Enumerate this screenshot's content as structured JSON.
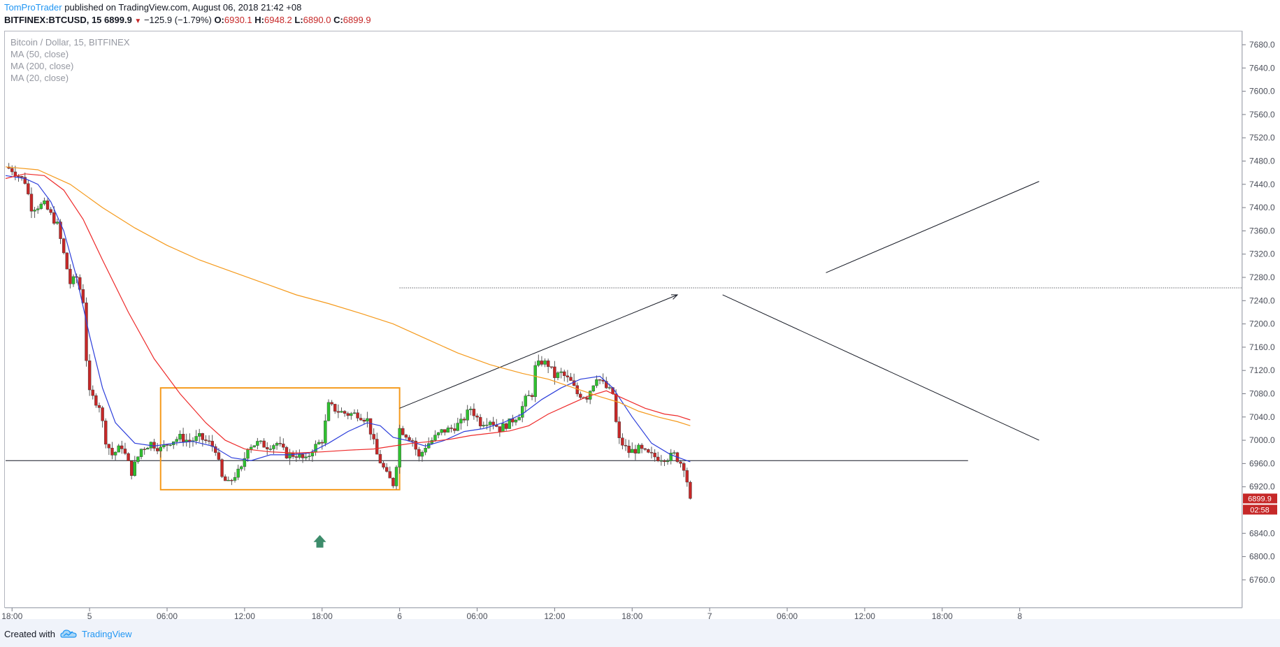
{
  "header": {
    "author": "TomProTrader",
    "published_text": "published on TradingView.com, August 06, 2018 21:42 +08",
    "symbol_line": "BITFINEX:BTCUSD, 15",
    "last_price": "6899.9",
    "change": "−125.9 (−1.79%)",
    "o_label": "O:",
    "o_value": "6930.1",
    "h_label": "H:",
    "h_value": "6948.2",
    "l_label": "L:",
    "l_value": "6890.0",
    "c_label": "C:",
    "c_value": "6899.9"
  },
  "legend": {
    "title": "Bitcoin / Dollar, 15, BITFINEX",
    "ma50": "MA (50, close)",
    "ma200": "MA (200, close)",
    "ma20": "MA (20, close)"
  },
  "footer": {
    "created_with": "Created with",
    "brand": "TradingView"
  },
  "colors": {
    "up": "#2fc12f",
    "down": "#c62828",
    "ma20": "#2c3edb",
    "ma50": "#ee2a2a",
    "ma200": "#f59a1c",
    "range_box": "#f59a1c",
    "price_tag": "#c62828",
    "signal_arrow": "#3d8c6b"
  },
  "chart_data": {
    "type": "candlestick",
    "title": "Bitcoin / Dollar, 15, BITFINEX",
    "ylim": [
      6730,
      7720
    ],
    "y_ticks": [
      7680,
      7640,
      7600,
      7560,
      7520,
      7480,
      7440,
      7400,
      7360,
      7320,
      7280,
      7240,
      7200,
      7160,
      7120,
      7080,
      7040,
      7000,
      6960,
      6920,
      6840,
      6800,
      6760
    ],
    "y_tick_labels": [
      "7680.0",
      "7640.0",
      "7600.0",
      "7560.0",
      "7520.0",
      "7480.0",
      "7440.0",
      "7400.0",
      "7360.0",
      "7320.0",
      "7280.0",
      "7240.0",
      "7200.0",
      "7160.0",
      "7120.0",
      "7080.0",
      "7040.0",
      "7000.0",
      "6960.0",
      "6920.0",
      "6840.0",
      "6800.0",
      "6760.0"
    ],
    "x_ticks": [
      {
        "label": "18:00",
        "t": 2
      },
      {
        "label": "5",
        "t": 26
      },
      {
        "label": "06:00",
        "t": 50
      },
      {
        "label": "12:00",
        "t": 74
      },
      {
        "label": "18:00",
        "t": 98
      },
      {
        "label": "6",
        "t": 122
      },
      {
        "label": "06:00",
        "t": 146
      },
      {
        "label": "12:00",
        "t": 170
      },
      {
        "label": "18:00",
        "t": 194
      },
      {
        "label": "7",
        "t": 218
      },
      {
        "label": "06:00",
        "t": 242
      },
      {
        "label": "12:00",
        "t": 266
      },
      {
        "label": "18:00",
        "t": 290
      },
      {
        "label": "8",
        "t": 314
      }
    ],
    "price_tag": "6899.9",
    "countdown_tag": "02:58",
    "candle_points": [
      [
        0,
        7470
      ],
      [
        2,
        7465
      ],
      [
        6,
        7445
      ],
      [
        8,
        7400
      ],
      [
        12,
        7405
      ],
      [
        16,
        7370
      ],
      [
        18,
        7320
      ],
      [
        20,
        7270
      ],
      [
        22,
        7280
      ],
      [
        24,
        7240
      ],
      [
        25,
        7140
      ],
      [
        26,
        7080
      ],
      [
        29,
        7060
      ],
      [
        31,
        7000
      ],
      [
        33,
        6975
      ],
      [
        36,
        6990
      ],
      [
        39,
        6945
      ],
      [
        42,
        6985
      ],
      [
        45,
        6995
      ],
      [
        48,
        6985
      ],
      [
        51,
        6998
      ],
      [
        54,
        7005
      ],
      [
        57,
        6998
      ],
      [
        60,
        7005
      ],
      [
        63,
        6995
      ],
      [
        65,
        6985
      ],
      [
        67,
        6935
      ],
      [
        69,
        6925
      ],
      [
        71,
        6940
      ],
      [
        73,
        6950
      ],
      [
        75,
        6990
      ],
      [
        78,
        6995
      ],
      [
        81,
        6990
      ],
      [
        84,
        6995
      ],
      [
        87,
        6975
      ],
      [
        90,
        6975
      ],
      [
        93,
        6965
      ],
      [
        95,
        6985
      ],
      [
        98,
        7000
      ],
      [
        100,
        7060
      ],
      [
        103,
        7050
      ],
      [
        106,
        7045
      ],
      [
        109,
        7045
      ],
      [
        112,
        7035
      ],
      [
        115,
        6975
      ],
      [
        118,
        6940
      ],
      [
        120,
        6925
      ],
      [
        121,
        6960
      ],
      [
        122,
        7020
      ],
      [
        124,
        7010
      ],
      [
        126,
        7000
      ],
      [
        128,
        6970
      ],
      [
        130,
        6990
      ],
      [
        132,
        7000
      ],
      [
        135,
        7015
      ],
      [
        138,
        7020
      ],
      [
        141,
        7030
      ],
      [
        144,
        7055
      ],
      [
        147,
        7030
      ],
      [
        150,
        7035
      ],
      [
        153,
        7020
      ],
      [
        156,
        7030
      ],
      [
        159,
        7045
      ],
      [
        161,
        7070
      ],
      [
        163,
        7080
      ],
      [
        164,
        7125
      ],
      [
        166,
        7135
      ],
      [
        168,
        7130
      ],
      [
        170,
        7110
      ],
      [
        172,
        7115
      ],
      [
        175,
        7100
      ],
      [
        177,
        7080
      ],
      [
        180,
        7075
      ],
      [
        183,
        7110
      ],
      [
        186,
        7090
      ],
      [
        188,
        7080
      ],
      [
        189,
        7030
      ],
      [
        190,
        7000
      ],
      [
        193,
        6980
      ],
      [
        196,
        6985
      ],
      [
        199,
        6975
      ],
      [
        202,
        6970
      ],
      [
        205,
        6970
      ],
      [
        207,
        6975
      ],
      [
        210,
        6955
      ],
      [
        211,
        6930
      ],
      [
        212,
        6900
      ]
    ],
    "series": [
      {
        "name": "MA (20, close)",
        "points": [
          [
            0,
            7455
          ],
          [
            6,
            7450
          ],
          [
            10,
            7440
          ],
          [
            14,
            7410
          ],
          [
            18,
            7360
          ],
          [
            22,
            7280
          ],
          [
            26,
            7180
          ],
          [
            30,
            7090
          ],
          [
            34,
            7030
          ],
          [
            40,
            6995
          ],
          [
            46,
            6990
          ],
          [
            52,
            6995
          ],
          [
            58,
            6998
          ],
          [
            64,
            6990
          ],
          [
            70,
            6970
          ],
          [
            76,
            6965
          ],
          [
            82,
            6975
          ],
          [
            88,
            6975
          ],
          [
            94,
            6978
          ],
          [
            100,
            6995
          ],
          [
            106,
            7015
          ],
          [
            112,
            7030
          ],
          [
            116,
            7025
          ],
          [
            120,
            7005
          ],
          [
            124,
            7000
          ],
          [
            130,
            6990
          ],
          [
            136,
            7000
          ],
          [
            142,
            7015
          ],
          [
            148,
            7020
          ],
          [
            154,
            7030
          ],
          [
            160,
            7045
          ],
          [
            166,
            7070
          ],
          [
            172,
            7090
          ],
          [
            178,
            7105
          ],
          [
            184,
            7110
          ],
          [
            188,
            7090
          ],
          [
            194,
            7040
          ],
          [
            200,
            6995
          ],
          [
            206,
            6975
          ],
          [
            212,
            6963
          ]
        ]
      },
      {
        "name": "MA (50, close)",
        "points": [
          [
            0,
            7450
          ],
          [
            6,
            7458
          ],
          [
            12,
            7455
          ],
          [
            18,
            7430
          ],
          [
            24,
            7380
          ],
          [
            30,
            7310
          ],
          [
            38,
            7220
          ],
          [
            46,
            7140
          ],
          [
            54,
            7080
          ],
          [
            62,
            7030
          ],
          [
            68,
            7000
          ],
          [
            74,
            6985
          ],
          [
            82,
            6980
          ],
          [
            90,
            6978
          ],
          [
            98,
            6980
          ],
          [
            106,
            6983
          ],
          [
            114,
            6985
          ],
          [
            120,
            6990
          ],
          [
            126,
            6995
          ],
          [
            132,
            6998
          ],
          [
            138,
            7002
          ],
          [
            144,
            7008
          ],
          [
            150,
            7012
          ],
          [
            156,
            7016
          ],
          [
            162,
            7025
          ],
          [
            168,
            7045
          ],
          [
            174,
            7060
          ],
          [
            180,
            7075
          ],
          [
            186,
            7085
          ],
          [
            192,
            7070
          ],
          [
            198,
            7055
          ],
          [
            204,
            7045
          ],
          [
            208,
            7042
          ],
          [
            212,
            7035
          ]
        ]
      },
      {
        "name": "MA (200, close)",
        "points": [
          [
            0,
            7470
          ],
          [
            10,
            7465
          ],
          [
            20,
            7440
          ],
          [
            30,
            7400
          ],
          [
            40,
            7365
          ],
          [
            50,
            7335
          ],
          [
            60,
            7310
          ],
          [
            70,
            7290
          ],
          [
            80,
            7270
          ],
          [
            90,
            7250
          ],
          [
            100,
            7235
          ],
          [
            110,
            7218
          ],
          [
            120,
            7200
          ],
          [
            130,
            7175
          ],
          [
            140,
            7150
          ],
          [
            150,
            7130
          ],
          [
            160,
            7115
          ],
          [
            168,
            7105
          ],
          [
            176,
            7090
          ],
          [
            184,
            7075
          ],
          [
            190,
            7065
          ],
          [
            196,
            7050
          ],
          [
            202,
            7040
          ],
          [
            208,
            7032
          ],
          [
            212,
            7025
          ]
        ]
      }
    ],
    "annotations": [
      {
        "type": "horizontal_line",
        "price": 6965,
        "t_from": 0,
        "t_to": 298
      },
      {
        "type": "dotted_line",
        "price": 7262,
        "t_from": 122,
        "t_to": 320
      },
      {
        "type": "rectangle",
        "price_top": 7090,
        "price_bottom": 6915,
        "t_from": 48,
        "t_to": 122
      },
      {
        "type": "arrow",
        "from": [
          122,
          7055
        ],
        "to": [
          208,
          7250
        ]
      },
      {
        "type": "line",
        "from": [
          222,
          7250
        ],
        "to": [
          320,
          7000
        ]
      },
      {
        "type": "line",
        "from": [
          254,
          7288
        ],
        "to": [
          320,
          7445
        ]
      },
      {
        "type": "up_marker",
        "t": 96,
        "price": 6825
      }
    ]
  }
}
